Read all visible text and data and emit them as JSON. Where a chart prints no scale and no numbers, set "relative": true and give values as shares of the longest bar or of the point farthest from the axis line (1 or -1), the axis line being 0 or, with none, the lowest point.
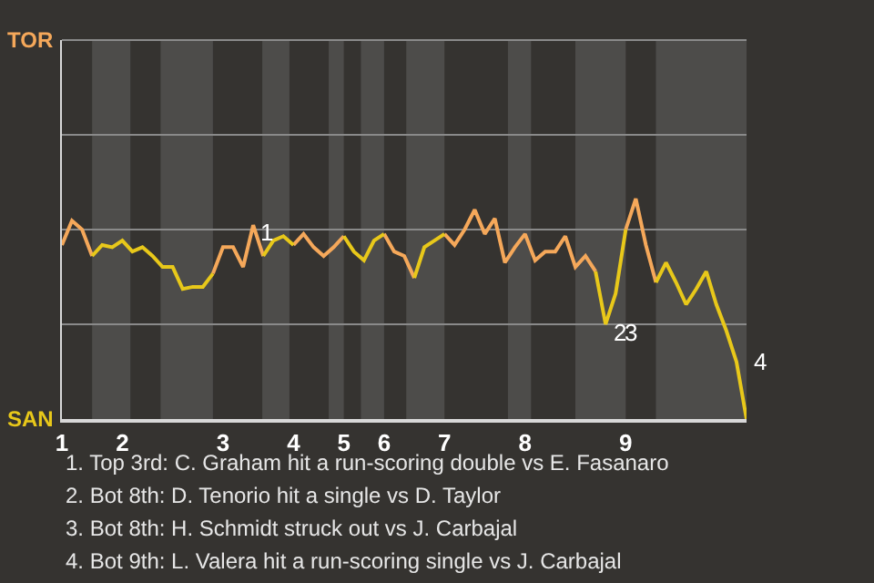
{
  "chart_data": {
    "type": "line",
    "relative": true,
    "categories": [
      "1",
      null,
      null,
      null,
      null,
      null,
      "2",
      null,
      null,
      null,
      null,
      null,
      null,
      null,
      null,
      null,
      "3",
      null,
      null,
      null,
      null,
      null,
      null,
      "4",
      null,
      null,
      null,
      null,
      "5",
      null,
      null,
      null,
      "6",
      null,
      null,
      null,
      null,
      null,
      "7",
      null,
      null,
      null,
      null,
      null,
      null,
      null,
      "8",
      null,
      null,
      null,
      null,
      null,
      null,
      null,
      null,
      null,
      "9",
      null,
      null,
      null,
      null,
      null,
      null,
      null,
      null,
      null,
      null,
      null,
      null
    ],
    "series": [
      {
        "color": "#f5a85a",
        "values": [
          0.79,
          0.9,
          0.86,
          0.74,
          null,
          null,
          null,
          null,
          null,
          null,
          null,
          null,
          null,
          null,
          null,
          0.66,
          0.78,
          0.78,
          0.69,
          0.88,
          0.74,
          null,
          null,
          0.79,
          0.84,
          0.78,
          0.74,
          0.78,
          0.83,
          null,
          null,
          null,
          0.84,
          0.76,
          0.74,
          0.64,
          null,
          null,
          0.84,
          0.79,
          0.86,
          0.95,
          0.84,
          0.91,
          0.71,
          0.78,
          0.84,
          0.72,
          0.76,
          0.76,
          0.83,
          0.69,
          0.74,
          0.67,
          null,
          null,
          0.86,
          1,
          0.79,
          0.62,
          null,
          null,
          null,
          null,
          null,
          null,
          null,
          null,
          null
        ]
      },
      {
        "color": "#e8c81a",
        "values": [
          null,
          null,
          null,
          0.74,
          0.79,
          0.78,
          0.81,
          0.76,
          0.78,
          0.74,
          0.69,
          0.69,
          0.59,
          0.6,
          0.6,
          0.66,
          null,
          null,
          null,
          null,
          0.74,
          0.81,
          0.83,
          0.79,
          null,
          null,
          null,
          null,
          0.83,
          0.76,
          0.72,
          0.81,
          0.84,
          null,
          null,
          0.64,
          0.78,
          0.81,
          0.84,
          null,
          null,
          null,
          null,
          null,
          null,
          null,
          null,
          null,
          null,
          null,
          null,
          null,
          null,
          0.67,
          0.43,
          0.57,
          0.86,
          null,
          null,
          0.62,
          0.71,
          0.62,
          0.52,
          0.59,
          0.67,
          0.52,
          0.4,
          0.26,
          0
        ]
      }
    ],
    "ref_lines": [
      {
        "axis": "y",
        "value": 0.43,
        "color": "#8a8a8a"
      },
      {
        "axis": "y",
        "value": 0.86,
        "color": "#8a8a8a"
      },
      {
        "axis": "y",
        "value": 1.29,
        "color": "#8a8a8a"
      }
    ],
    "marker": "none",
    "line_style": "solid",
    "annotations": [
      {
        "text": "1",
        "y": 0.88
      },
      {
        "text": "2",
        "y": 0.43
      },
      {
        "text": "3",
        "y": 0.43
      },
      "TOR",
      "SAN",
      "4",
      "1. Top 3rd: C. Graham hit a run-scoring double vs E. Fasanaro",
      "2. Bot 8th: D. Tenorio hit a single vs D. Taylor",
      "3. Bot 8th: H. Schmidt struck out vs J. Carbajal",
      "4. Bot 9th: L. Valera hit a run-scoring single vs J. Carbajal"
    ]
  }
}
